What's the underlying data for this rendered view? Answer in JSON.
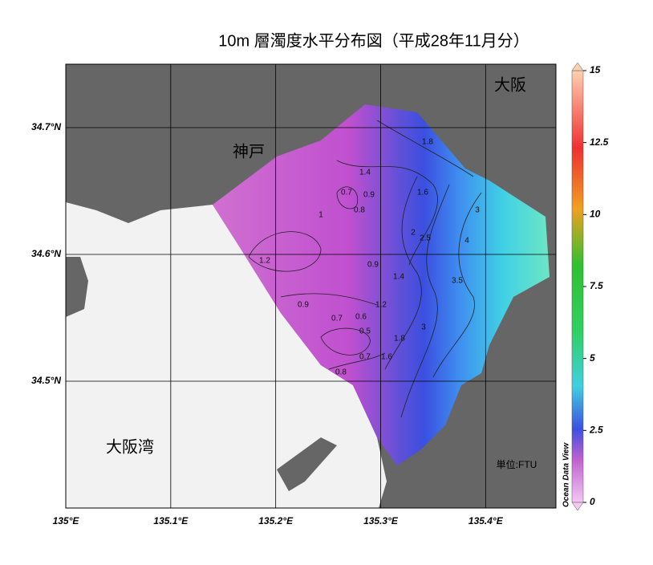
{
  "title": "10m 層濁度水平分布図（平成28年11月分）",
  "map": {
    "xlim": [
      135,
      135.467
    ],
    "ylim": [
      34.4,
      34.75
    ],
    "xticks": [
      {
        "value": 135,
        "label": "135°E"
      },
      {
        "value": 135.1,
        "label": "135.1°E"
      },
      {
        "value": 135.2,
        "label": "135.2°E"
      },
      {
        "value": 135.3,
        "label": "135.3°E"
      },
      {
        "value": 135.4,
        "label": "135.4°E"
      }
    ],
    "yticks": [
      {
        "value": 34.5,
        "label": "34.5°N"
      },
      {
        "value": 34.6,
        "label": "34.6°N"
      },
      {
        "value": 34.7,
        "label": "34.7°N"
      }
    ]
  },
  "place_names": [
    "神戸",
    "大阪",
    "大阪湾"
  ],
  "colorbar": {
    "lim": [
      0,
      15
    ],
    "ticks": [
      0,
      2.5,
      5,
      7.5,
      10,
      12.5,
      15
    ],
    "unit": "単位:FTU",
    "credit": "Ocean Data View"
  },
  "contour_labels": [
    1.8,
    1.4,
    0.7,
    0.9,
    0.8,
    1,
    1.6,
    2,
    2.5,
    3,
    4,
    1.2,
    0.9,
    1.4,
    3.5,
    0.9,
    1.2,
    0.7,
    0.6,
    0.5,
    1.8,
    3,
    0.7,
    1.6,
    0.8
  ]
}
